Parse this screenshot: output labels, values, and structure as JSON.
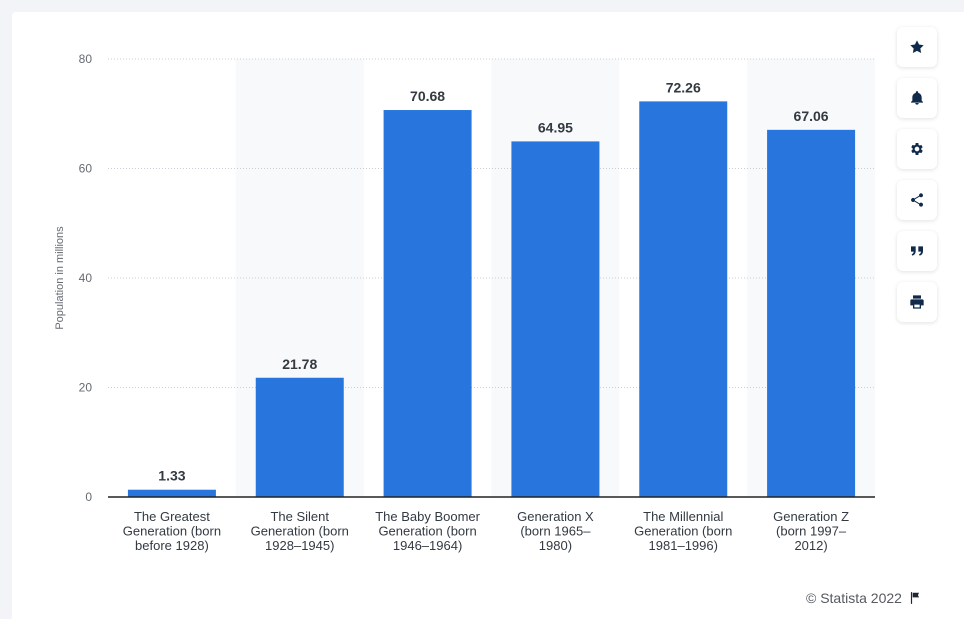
{
  "chart_data": {
    "type": "bar",
    "categories": [
      "The Greatest Generation (born before 1928)",
      "The Silent Generation (born 1928–1945)",
      "The Baby Boomer Generation (born 1946–1964)",
      "Generation X (born 1965–1980)",
      "The Millennial Generation (born 1981–1996)",
      "Generation Z (born 1997–2012)"
    ],
    "category_lines": [
      [
        "The Greatest",
        "Generation (born",
        "before 1928)"
      ],
      [
        "The Silent",
        "Generation (born",
        "1928–1945)"
      ],
      [
        "The Baby Boomer",
        "Generation (born",
        "1946–1964)"
      ],
      [
        "Generation X",
        "(born 1965–",
        "1980)"
      ],
      [
        "The Millennial",
        "Generation (born",
        "1981–1996)"
      ],
      [
        "Generation Z",
        "(born 1997–",
        "2012)"
      ]
    ],
    "values": [
      1.33,
      21.78,
      70.68,
      64.95,
      72.26,
      67.06
    ],
    "value_labels": [
      "1.33",
      "21.78",
      "70.68",
      "64.95",
      "72.26",
      "67.06"
    ],
    "ylabel": "Population in millions",
    "xlabel": "",
    "ylim": [
      0,
      80
    ],
    "yticks": [
      0,
      20,
      40,
      60,
      80
    ],
    "grid": true,
    "bar_color": "#2876dd"
  },
  "toolbar": {
    "icons": [
      "star-icon",
      "bell-icon",
      "gear-icon",
      "share-icon",
      "quote-icon",
      "print-icon"
    ]
  },
  "credit": {
    "text": "© Statista 2022",
    "icon": "flag-icon"
  }
}
